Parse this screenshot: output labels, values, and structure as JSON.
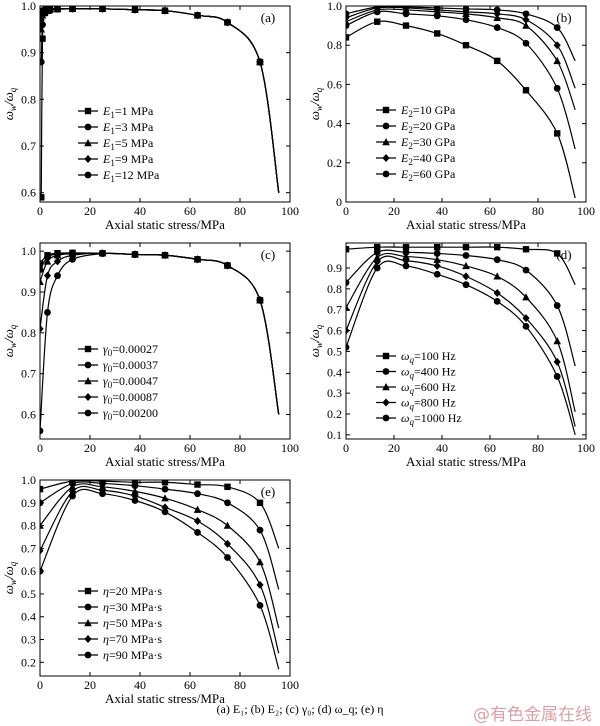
{
  "caption": "(a) E₁; (b) E₂; (c) γ₀; (d) ω_q; (e) η",
  "watermark": "@有色金属在线",
  "chart_data": [
    {
      "type": "line",
      "panel_label": "(a)",
      "xlabel": "Axial static stress/MPa",
      "ylabel_main": "ω",
      "ylabel_sub1": "w",
      "ylabel_mid": "/ω",
      "ylabel_sub2": "q",
      "xlim": [
        0,
        100
      ],
      "ylim": [
        0.58,
        1.0
      ],
      "xticks": [
        0,
        20,
        40,
        60,
        80,
        100
      ],
      "yticks": [
        0.6,
        0.7,
        0.8,
        0.9,
        1.0
      ],
      "ytick_labels": [
        "0.6",
        "0.7",
        "0.8",
        "0.9",
        "1.0"
      ],
      "legend": [
        {
          "sym": "E",
          "sub": "1",
          "text": "=1 MPa",
          "marker": "square"
        },
        {
          "sym": "E",
          "sub": "1",
          "text": "=3 MPa",
          "marker": "circle"
        },
        {
          "sym": "E",
          "sub": "1",
          "text": "=5 MPa",
          "marker": "triangle"
        },
        {
          "sym": "E",
          "sub": "1",
          "text": "=9 MPa",
          "marker": "diamond"
        },
        {
          "sym": "E",
          "sub": "1",
          "text": "=12 MPa",
          "marker": "circle"
        }
      ],
      "series": [
        {
          "marker": "square",
          "x": [
            0.5,
            1,
            2,
            4,
            7,
            13,
            25,
            38,
            50,
            63,
            75,
            88,
            95.5
          ],
          "y": [
            0.59,
            0.93,
            0.985,
            0.992,
            0.993,
            0.994,
            0.994,
            0.992,
            0.99,
            0.98,
            0.965,
            0.88,
            0.6
          ]
        },
        {
          "marker": "circle",
          "x": [
            0.5,
            1,
            2,
            4,
            7,
            13,
            25,
            38,
            50,
            63,
            75,
            88,
            95.5
          ],
          "y": [
            0.88,
            0.96,
            0.985,
            0.99,
            0.993,
            0.994,
            0.994,
            0.992,
            0.99,
            0.98,
            0.965,
            0.88,
            0.6
          ]
        },
        {
          "marker": "triangle",
          "x": [
            0.5,
            1,
            2,
            4,
            7,
            13,
            25,
            38,
            50,
            63,
            75,
            88,
            95.5
          ],
          "y": [
            0.95,
            0.98,
            0.99,
            0.993,
            0.994,
            0.994,
            0.994,
            0.992,
            0.99,
            0.98,
            0.965,
            0.88,
            0.6
          ]
        },
        {
          "marker": "diamond",
          "x": [
            0.5,
            1,
            2,
            4,
            7,
            13,
            25,
            38,
            50,
            63,
            75,
            88,
            95.5
          ],
          "y": [
            0.97,
            0.985,
            0.992,
            0.994,
            0.994,
            0.994,
            0.994,
            0.992,
            0.99,
            0.98,
            0.965,
            0.88,
            0.6
          ]
        },
        {
          "marker": "circle",
          "x": [
            0.5,
            1,
            2,
            4,
            7,
            13,
            25,
            38,
            50,
            63,
            75,
            88,
            95.5
          ],
          "y": [
            0.985,
            0.99,
            0.993,
            0.994,
            0.994,
            0.994,
            0.994,
            0.992,
            0.99,
            0.98,
            0.965,
            0.88,
            0.6
          ]
        }
      ]
    },
    {
      "type": "line",
      "panel_label": "(b)",
      "xlabel": "Axial static stress/MPa",
      "ylabel_main": "ω",
      "ylabel_sub1": "w",
      "ylabel_mid": "/ω",
      "ylabel_sub2": "q",
      "xlim": [
        0,
        100
      ],
      "ylim": [
        0.0,
        1.0
      ],
      "xticks": [
        0,
        20,
        40,
        60,
        80,
        100
      ],
      "yticks": [
        0,
        0.2,
        0.4,
        0.6,
        0.8,
        1.0
      ],
      "ytick_labels": [
        "0",
        "0.2",
        "0.4",
        "0.6",
        "0.8",
        "1.0"
      ],
      "legend": [
        {
          "sym": "E",
          "sub": "2",
          "text": "=10 GPa",
          "marker": "square"
        },
        {
          "sym": "E",
          "sub": "2",
          "text": "=20 GPa",
          "marker": "circle"
        },
        {
          "sym": "E",
          "sub": "2",
          "text": "=30 GPa",
          "marker": "triangle"
        },
        {
          "sym": "E",
          "sub": "2",
          "text": "=40 GPa",
          "marker": "diamond"
        },
        {
          "sym": "E",
          "sub": "2",
          "text": "=60 GPa",
          "marker": "circle"
        }
      ],
      "series": [
        {
          "marker": "square",
          "x": [
            0,
            13,
            25,
            38,
            50,
            63,
            75,
            88,
            95.5
          ],
          "y": [
            0.84,
            0.92,
            0.9,
            0.86,
            0.8,
            0.72,
            0.57,
            0.35,
            0.02
          ]
        },
        {
          "marker": "circle",
          "x": [
            0,
            13,
            25,
            38,
            50,
            63,
            75,
            88,
            95.5
          ],
          "y": [
            0.9,
            0.97,
            0.96,
            0.95,
            0.93,
            0.89,
            0.81,
            0.58,
            0.27
          ]
        },
        {
          "marker": "triangle",
          "x": [
            0,
            13,
            25,
            38,
            50,
            63,
            75,
            88,
            95.5
          ],
          "y": [
            0.92,
            0.98,
            0.98,
            0.97,
            0.96,
            0.94,
            0.9,
            0.72,
            0.47
          ]
        },
        {
          "marker": "diamond",
          "x": [
            0,
            13,
            25,
            38,
            50,
            63,
            75,
            88,
            95.5
          ],
          "y": [
            0.94,
            0.99,
            0.99,
            0.98,
            0.97,
            0.96,
            0.93,
            0.8,
            0.58
          ]
        },
        {
          "marker": "circle",
          "x": [
            0,
            13,
            25,
            38,
            50,
            63,
            75,
            88,
            95.5
          ],
          "y": [
            0.96,
            0.995,
            0.995,
            0.99,
            0.985,
            0.98,
            0.96,
            0.89,
            0.72
          ]
        }
      ]
    },
    {
      "type": "line",
      "panel_label": "(c)",
      "xlabel": "Axial static stress/MPa",
      "ylabel_main": "ω",
      "ylabel_sub1": "w",
      "ylabel_mid": "/ω",
      "ylabel_sub2": "q",
      "xlim": [
        0,
        100
      ],
      "ylim": [
        0.54,
        1.02
      ],
      "xticks": [
        0,
        20,
        40,
        60,
        80,
        100
      ],
      "yticks": [
        0.6,
        0.7,
        0.8,
        0.9,
        1.0
      ],
      "ytick_labels": [
        "0.6",
        "0.7",
        "0.8",
        "0.9",
        "1.0"
      ],
      "legend": [
        {
          "sym": "γ",
          "sub": "0",
          "text": "=0.00027",
          "marker": "square"
        },
        {
          "sym": "γ",
          "sub": "0",
          "text": "=0.00037",
          "marker": "circle"
        },
        {
          "sym": "γ",
          "sub": "0",
          "text": "=0.00047",
          "marker": "triangle"
        },
        {
          "sym": "γ",
          "sub": "0",
          "text": "=0.00087",
          "marker": "diamond"
        },
        {
          "sym": "γ",
          "sub": "0",
          "text": "=0.00200",
          "marker": "circle"
        }
      ],
      "series": [
        {
          "marker": "square",
          "x": [
            0,
            3,
            7,
            13,
            25,
            38,
            50,
            63,
            75,
            88,
            95.5
          ],
          "y": [
            0.97,
            0.99,
            0.995,
            0.996,
            0.995,
            0.992,
            0.99,
            0.98,
            0.965,
            0.88,
            0.6
          ]
        },
        {
          "marker": "circle",
          "x": [
            0,
            3,
            7,
            13,
            25,
            38,
            50,
            63,
            75,
            88,
            95.5
          ],
          "y": [
            0.955,
            0.985,
            0.993,
            0.995,
            0.995,
            0.992,
            0.99,
            0.98,
            0.965,
            0.88,
            0.6
          ]
        },
        {
          "marker": "triangle",
          "x": [
            0,
            3,
            7,
            13,
            25,
            38,
            50,
            63,
            75,
            88,
            95.5
          ],
          "y": [
            0.925,
            0.975,
            0.99,
            0.994,
            0.995,
            0.992,
            0.99,
            0.98,
            0.965,
            0.88,
            0.6
          ]
        },
        {
          "marker": "diamond",
          "x": [
            0,
            3,
            7,
            13,
            25,
            38,
            50,
            63,
            75,
            88,
            95.5
          ],
          "y": [
            0.81,
            0.94,
            0.975,
            0.99,
            0.995,
            0.992,
            0.99,
            0.98,
            0.965,
            0.88,
            0.6
          ]
        },
        {
          "marker": "circle",
          "x": [
            0,
            3,
            7,
            13,
            25,
            38,
            50,
            63,
            75,
            88,
            95.5
          ],
          "y": [
            0.56,
            0.85,
            0.94,
            0.98,
            0.994,
            0.992,
            0.99,
            0.98,
            0.965,
            0.88,
            0.6
          ]
        }
      ]
    },
    {
      "type": "line",
      "panel_label": "(d)",
      "xlabel": "Axial static stress/MPa",
      "ylabel_main": "ω",
      "ylabel_sub1": "w",
      "ylabel_mid": "/ω",
      "ylabel_sub2": "q",
      "xlim": [
        0,
        100
      ],
      "ylim": [
        0.08,
        1.02
      ],
      "xticks": [
        0,
        20,
        40,
        60,
        80,
        100
      ],
      "yticks": [
        0.1,
        0.2,
        0.3,
        0.4,
        0.5,
        0.6,
        0.7,
        0.8,
        0.9
      ],
      "ytick_labels": [
        "0.1",
        "0.2",
        "0.3",
        "0.4",
        "0.5",
        "0.6",
        "0.7",
        "0.8",
        "0.9"
      ],
      "legend": [
        {
          "sym": "ω",
          "sub": "q",
          "text": "=100 Hz",
          "marker": "square"
        },
        {
          "sym": "ω",
          "sub": "q",
          "text": "=400 Hz",
          "marker": "circle"
        },
        {
          "sym": "ω",
          "sub": "q",
          "text": "=600 Hz",
          "marker": "triangle"
        },
        {
          "sym": "ω",
          "sub": "q",
          "text": "=800 Hz",
          "marker": "diamond"
        },
        {
          "sym": "ω",
          "sub": "q",
          "text": "=1000 Hz",
          "marker": "circle"
        }
      ],
      "series": [
        {
          "marker": "square",
          "x": [
            0,
            13,
            25,
            38,
            50,
            63,
            75,
            88,
            95.5
          ],
          "y": [
            0.99,
            1.0,
            1.0,
            1.0,
            1.0,
            1.0,
            0.99,
            0.97,
            0.82
          ]
        },
        {
          "marker": "circle",
          "x": [
            0,
            13,
            25,
            38,
            50,
            63,
            75,
            88,
            95.5
          ],
          "y": [
            0.83,
            0.975,
            0.975,
            0.97,
            0.96,
            0.94,
            0.89,
            0.72,
            0.43
          ]
        },
        {
          "marker": "triangle",
          "x": [
            0,
            13,
            25,
            38,
            50,
            63,
            75,
            88,
            95.5
          ],
          "y": [
            0.71,
            0.95,
            0.955,
            0.94,
            0.91,
            0.86,
            0.76,
            0.55,
            0.21
          ]
        },
        {
          "marker": "diamond",
          "x": [
            0,
            13,
            25,
            38,
            50,
            63,
            75,
            88,
            95.5
          ],
          "y": [
            0.6,
            0.93,
            0.935,
            0.91,
            0.86,
            0.78,
            0.66,
            0.45,
            0.14
          ]
        },
        {
          "marker": "circle",
          "x": [
            0,
            13,
            25,
            38,
            50,
            63,
            75,
            88,
            95.5
          ],
          "y": [
            0.52,
            0.9,
            0.91,
            0.87,
            0.82,
            0.74,
            0.62,
            0.38,
            0.1
          ]
        }
      ]
    },
    {
      "type": "line",
      "panel_label": "(e)",
      "xlabel": "Axial static stress/MPa",
      "ylabel_main": "ω",
      "ylabel_sub1": "w",
      "ylabel_mid": "/ω",
      "ylabel_sub2": "q",
      "xlim": [
        0,
        100
      ],
      "ylim": [
        0.14,
        1.0
      ],
      "xticks": [
        0,
        20,
        40,
        60,
        80,
        100
      ],
      "yticks": [
        0.2,
        0.3,
        0.4,
        0.5,
        0.6,
        0.7,
        0.8,
        0.9,
        1.0
      ],
      "ytick_labels": [
        "0.2",
        "0.3",
        "0.4",
        "0.5",
        "0.6",
        "0.7",
        "0.8",
        "0.9",
        "1.0"
      ],
      "legend": [
        {
          "sym": "η",
          "sub": "",
          "text": "=20 MPa·s",
          "marker": "square"
        },
        {
          "sym": "η",
          "sub": "",
          "text": "=30 MPa·s",
          "marker": "circle"
        },
        {
          "sym": "η",
          "sub": "",
          "text": "=50 MPa·s",
          "marker": "triangle"
        },
        {
          "sym": "η",
          "sub": "",
          "text": "=70 MPa·s",
          "marker": "diamond"
        },
        {
          "sym": "η",
          "sub": "",
          "text": "=90 MPa·s",
          "marker": "circle"
        }
      ],
      "series": [
        {
          "marker": "square",
          "x": [
            0,
            13,
            25,
            38,
            50,
            63,
            75,
            88,
            95.5
          ],
          "y": [
            0.96,
            0.995,
            0.995,
            0.99,
            0.99,
            0.98,
            0.97,
            0.9,
            0.7
          ]
        },
        {
          "marker": "circle",
          "x": [
            0,
            13,
            25,
            38,
            50,
            63,
            75,
            88,
            95.5
          ],
          "y": [
            0.9,
            0.985,
            0.985,
            0.975,
            0.96,
            0.94,
            0.9,
            0.78,
            0.52
          ]
        },
        {
          "marker": "triangle",
          "x": [
            0,
            13,
            25,
            38,
            50,
            63,
            75,
            88,
            95.5
          ],
          "y": [
            0.8,
            0.97,
            0.97,
            0.95,
            0.92,
            0.87,
            0.8,
            0.64,
            0.35
          ]
        },
        {
          "marker": "diamond",
          "x": [
            0,
            13,
            25,
            38,
            50,
            63,
            75,
            88,
            95.5
          ],
          "y": [
            0.69,
            0.95,
            0.955,
            0.93,
            0.88,
            0.82,
            0.72,
            0.54,
            0.24
          ]
        },
        {
          "marker": "circle",
          "x": [
            0,
            13,
            25,
            38,
            50,
            63,
            75,
            88,
            95.5
          ],
          "y": [
            0.6,
            0.93,
            0.94,
            0.91,
            0.86,
            0.77,
            0.66,
            0.45,
            0.17
          ]
        }
      ]
    }
  ]
}
